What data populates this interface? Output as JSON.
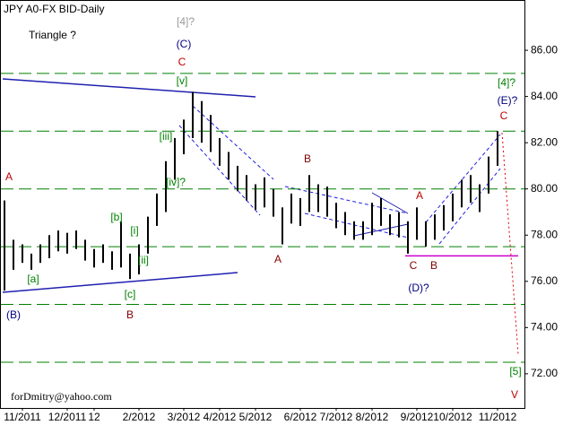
{
  "chart_data": {
    "type": "ohlc",
    "title": "JPY A0-FX BID-Daily",
    "categories": [
      null,
      null,
      "11/2011",
      null,
      null,
      null,
      null,
      "12/2011",
      null,
      null,
      "12",
      null,
      null,
      null,
      null,
      "2/2012",
      null,
      null,
      null,
      null,
      "3/2012",
      null,
      null,
      null,
      "4/2012",
      null,
      null,
      null,
      "5/2012",
      null,
      null,
      null,
      null,
      "6/2012",
      null,
      null,
      null,
      "7/2012",
      null,
      null,
      null,
      "8/2012",
      null,
      null,
      null,
      null,
      "9/2012",
      null,
      null,
      null,
      "10/2012",
      null,
      null,
      null,
      null,
      "11/2012"
    ],
    "high": [
      79.5,
      77.8,
      77.6,
      77.2,
      77.6,
      78.0,
      78.2,
      78.1,
      78.2,
      77.8,
      77.4,
      77.6,
      77.3,
      78.6,
      77.2,
      77.6,
      78.8,
      79.8,
      81.2,
      82.2,
      83.0,
      84.2,
      83.8,
      83.2,
      82.2,
      81.6,
      81.0,
      80.6,
      80.2,
      80.5,
      80.0,
      79.2,
      79.8,
      79.6,
      80.6,
      80.2,
      80.1,
      79.4,
      79.0,
      78.6,
      78.6,
      79.4,
      79.6,
      78.9,
      79.0,
      78.6,
      79.2,
      78.6,
      78.9,
      79.3,
      79.8,
      80.4,
      80.6,
      80.2,
      81.4,
      82.5
    ],
    "low": [
      75.6,
      76.5,
      76.8,
      76.5,
      76.8,
      77.0,
      77.3,
      77.2,
      77.4,
      76.9,
      76.6,
      76.8,
      76.5,
      76.6,
      76.1,
      76.3,
      77.2,
      78.4,
      79.0,
      80.4,
      81.5,
      82.2,
      82.0,
      81.6,
      81.0,
      80.4,
      79.9,
      79.5,
      79.1,
      79.2,
      78.8,
      77.6,
      78.5,
      78.4,
      79.0,
      79.0,
      78.8,
      78.3,
      78.0,
      77.8,
      77.8,
      78.0,
      78.4,
      78.0,
      77.9,
      77.2,
      77.8,
      77.5,
      77.8,
      78.2,
      78.6,
      79.2,
      79.4,
      79.0,
      79.8,
      81.0
    ],
    "color": "#000000",
    "ylim": [
      70.52,
      88.06
    ],
    "yticks": [
      {
        "value": 72,
        "label": "72.00"
      },
      {
        "value": 74,
        "label": "74.00"
      },
      {
        "value": 76,
        "label": "76.00"
      },
      {
        "value": 78,
        "label": "78.00"
      },
      {
        "value": 80,
        "label": "80.00"
      },
      {
        "value": 82,
        "label": "82.00"
      },
      {
        "value": 84,
        "label": "84.00"
      },
      {
        "value": 86,
        "label": "86.00"
      }
    ],
    "levels": [
      85,
      82.5,
      80,
      77.5,
      75,
      72.5
    ],
    "level_color": "#008000",
    "support_level": 77.1,
    "support_color": "#cc00cc",
    "annotations": [
      "Triangle ?",
      "[4]?",
      "(C)",
      "C",
      "[v]",
      "[iii]",
      "[iv]?",
      "[b]",
      "[i]",
      "[ii]",
      "[a]",
      "[c]",
      "B",
      "(B)",
      "A",
      "A",
      "B",
      "A",
      "C",
      "B",
      "(D)?",
      "[4]?",
      "(E)?",
      "C",
      "[5]",
      "V",
      "forDmitry@yahoo.com"
    ]
  }
}
